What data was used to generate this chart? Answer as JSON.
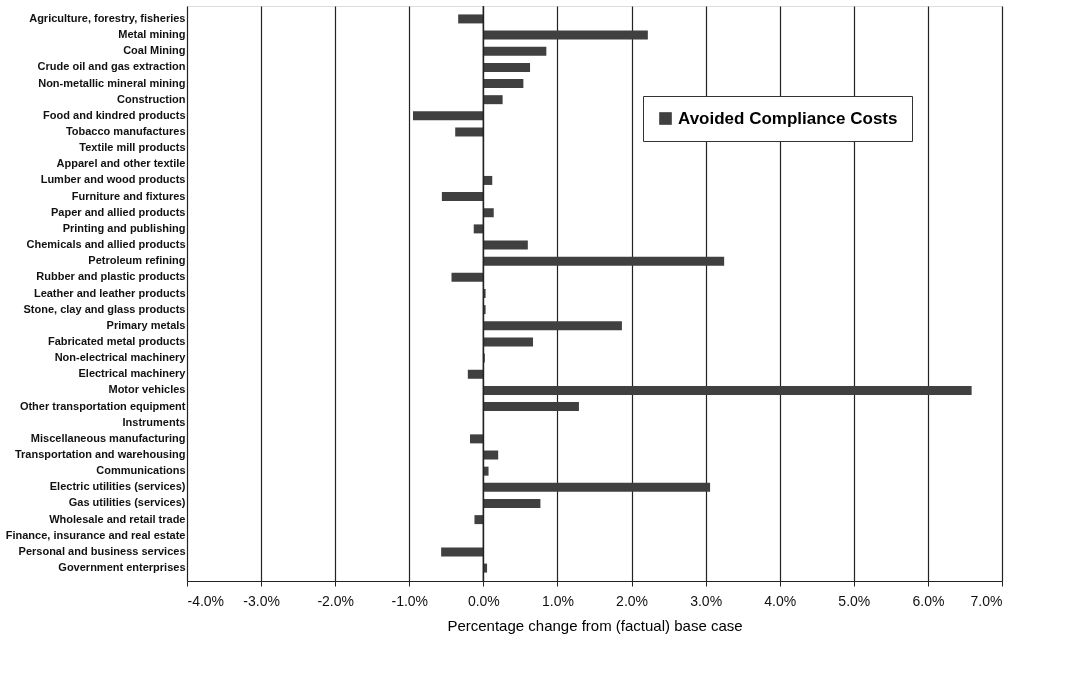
{
  "chart_data": {
    "type": "bar",
    "orientation": "horizontal",
    "xlabel": "Percentage change from (factual) base case",
    "categories": [
      "Agriculture, forestry, fisheries",
      "Metal mining",
      "Coal Mining",
      "Crude oil and gas extraction",
      "Non-metallic mineral mining",
      "Construction",
      "Food and kindred products",
      "Tobacco manufactures",
      "Textile mill products",
      "Apparel and other textile",
      "Lumber and wood products",
      "Furniture and fixtures",
      "Paper and allied products",
      "Printing and publishing",
      "Chemicals and allied products",
      "Petroleum refining",
      "Rubber and plastic products",
      "Leather and leather products",
      "Stone, clay and glass products",
      "Primary metals",
      "Fabricated metal products",
      "Non-electrical machinery",
      "Electrical machinery",
      "Motor vehicles",
      "Other transportation equipment",
      "Instruments",
      "Miscellaneous manufacturing",
      "Transportation and warehousing",
      "Communications",
      "Electric utilities (services)",
      "Gas utilities (services)",
      "Wholesale and retail trade",
      "Finance, insurance and real estate",
      "Personal and business services",
      "Government enterprises"
    ],
    "series": [
      {
        "name": "Avoided Compliance Costs",
        "color": "#404040",
        "values": [
          -0.34,
          2.22,
          0.85,
          0.63,
          0.54,
          0.26,
          -0.95,
          -0.38,
          0,
          0,
          0.12,
          -0.56,
          0.14,
          -0.13,
          0.6,
          3.25,
          -0.43,
          0.03,
          0.03,
          1.87,
          0.67,
          0.02,
          -0.21,
          6.59,
          1.29,
          0,
          -0.18,
          0.2,
          0.07,
          3.06,
          0.77,
          -0.12,
          0,
          -0.57,
          0.05
        ]
      }
    ],
    "xlim": [
      -4,
      7
    ],
    "xticks": [
      {
        "value": -4,
        "label": "-4.0%"
      },
      {
        "value": -3,
        "label": "-3.0%"
      },
      {
        "value": -2,
        "label": "-2.0%"
      },
      {
        "value": -1,
        "label": "-1.0%"
      },
      {
        "value": 0,
        "label": "0.0%"
      },
      {
        "value": 1,
        "label": "1.0%"
      },
      {
        "value": 2,
        "label": "2.0%"
      },
      {
        "value": 3,
        "label": "3.0%"
      },
      {
        "value": 4,
        "label": "4.0%"
      },
      {
        "value": 5,
        "label": "5.0%"
      },
      {
        "value": 6,
        "label": "6.0%"
      },
      {
        "value": 7,
        "label": "7.0%"
      }
    ],
    "grid": "x",
    "legend": "top right"
  }
}
